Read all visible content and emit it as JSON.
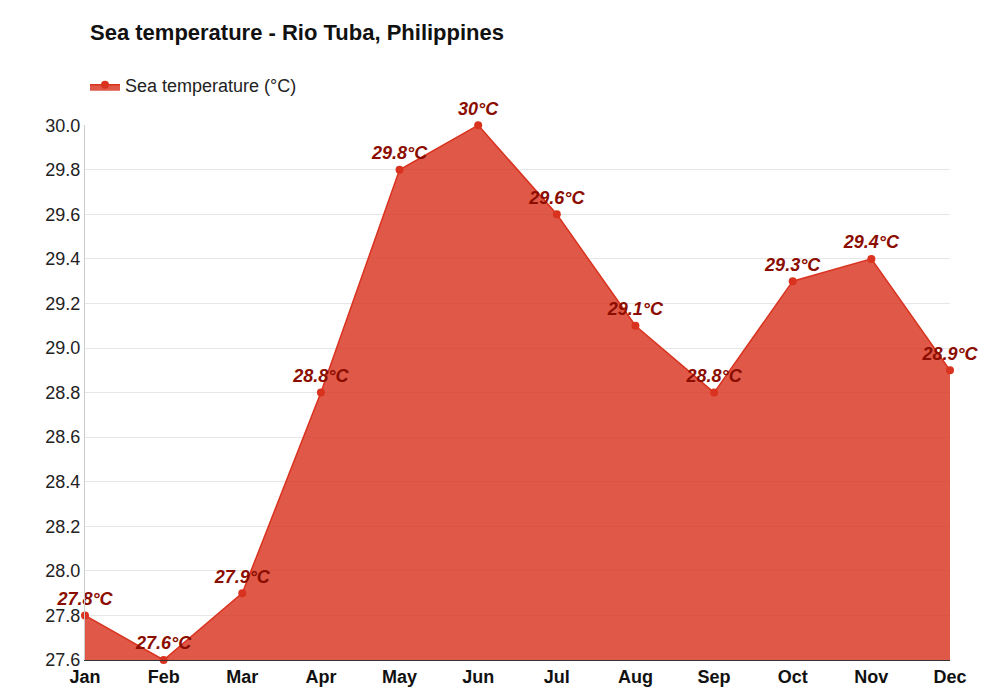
{
  "chart_data": {
    "type": "area",
    "title": "Sea temperature - Rio Tuba, Philippines",
    "categories": [
      "Jan",
      "Feb",
      "Mar",
      "Apr",
      "May",
      "Jun",
      "Jul",
      "Aug",
      "Sep",
      "Oct",
      "Nov",
      "Dec"
    ],
    "series": [
      {
        "name": "Sea temperature (°C)",
        "color": "#d9331f",
        "marker": "circle",
        "values": [
          27.8,
          27.6,
          27.9,
          28.8,
          29.8,
          30,
          29.6,
          29.1,
          28.8,
          29.3,
          29.4,
          28.9
        ],
        "value_labels": [
          "27.8°C",
          "27.6°C",
          "27.9°C",
          "28.8°C",
          "29.8°C",
          "30°C",
          "29.6°C",
          "29.1°C",
          "28.8°C",
          "29.3°C",
          "29.4°C",
          "28.9°C"
        ]
      }
    ],
    "ylim": [
      27.6,
      30.0
    ],
    "yticks": [
      27.6,
      27.8,
      {
        "value": 28,
        "label": "28.0"
      },
      28.2,
      28.4,
      28.6,
      28.8,
      {
        "value": 29,
        "label": "29.0"
      },
      29.2,
      29.4,
      29.6,
      29.8,
      {
        "value": 30,
        "label": "30.0"
      }
    ],
    "grid": true,
    "legend": "top-left",
    "data_labels": true
  }
}
